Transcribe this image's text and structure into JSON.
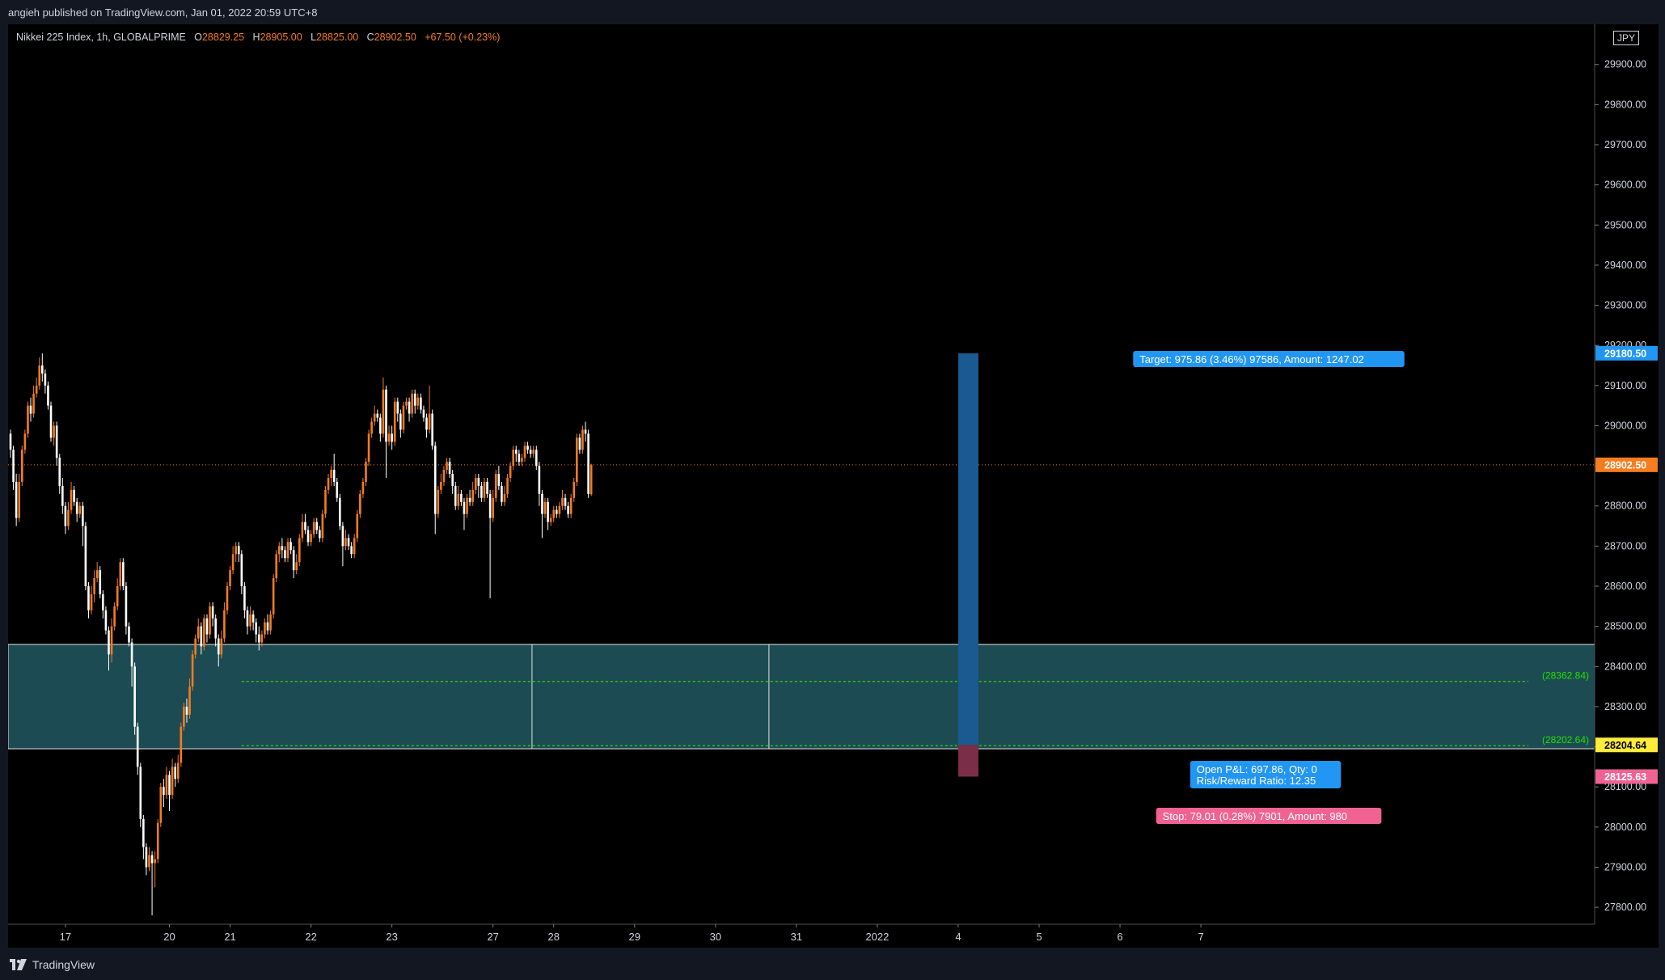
{
  "header": {
    "publisher_line": "angieh published on TradingView.com, Jan 01, 2022 20:59 UTC+8"
  },
  "legend": {
    "symbol": "Nikkei 225 Index, 1h, GLOBALPRIME",
    "open_label": "O",
    "open": "28829.25",
    "high_label": "H",
    "high": "28905.00",
    "low_label": "L",
    "low": "28825.00",
    "close_label": "C",
    "close": "28902.50",
    "change": "+67.50 (+0.23%)"
  },
  "currency_badge": "JPY",
  "footer": {
    "brand": "TradingView"
  },
  "colors": {
    "up": "#f57c1f",
    "down": "#ffffff",
    "zone": "#1d4b53",
    "target": "#2196f3",
    "target_fill": "#1b5a90",
    "stop": "#f06292",
    "last_price": "#f57c1f",
    "entry_price": "#ffeb3b",
    "level_line": "#22e000"
  },
  "chart_data": {
    "type": "candlestick",
    "symbol": "Nikkei 225 Index",
    "interval": "1h",
    "y_axis": {
      "range": [
        27770,
        29980
      ],
      "ticks": [
        27800,
        27900,
        28000,
        28100,
        28200,
        28300,
        28400,
        28500,
        28600,
        28700,
        28800,
        28900,
        29000,
        29100,
        29200,
        29300,
        29400,
        29500,
        29600,
        29700,
        29800,
        29900
      ],
      "tick_labels": [
        "27800.00",
        "27900.00",
        "28000.00",
        "28100.00",
        "28200.00",
        "28300.00",
        "28400.00",
        "28500.00",
        "28600.00",
        "28700.00",
        "28800.00",
        "28900.00",
        "29000.00",
        "29100.00",
        "29200.00",
        "29300.00",
        "29400.00",
        "29500.00",
        "29600.00",
        "29700.00",
        "29800.00",
        "29900.00"
      ]
    },
    "x_axis": {
      "tick_labels": [
        "17",
        "20",
        "21",
        "22",
        "23",
        "27",
        "28",
        "29",
        "30",
        "31",
        "2022",
        "4",
        "5",
        "6",
        "7"
      ],
      "tick_bar_index": [
        19,
        55,
        76,
        104,
        132,
        167,
        188,
        216,
        244,
        272,
        300,
        328,
        356,
        384,
        412
      ]
    },
    "grid": false,
    "price_labels": [
      {
        "value": 29180.5,
        "text": "29180.50",
        "kind": "target"
      },
      {
        "value": 28902.5,
        "text": "28902.50",
        "kind": "last"
      },
      {
        "value": 28204.64,
        "text": "28204.64",
        "kind": "entry"
      },
      {
        "value": 28125.63,
        "text": "28125.63",
        "kind": "stop"
      }
    ],
    "zone": {
      "top": 28455,
      "bottom": 28195,
      "dividers_bar_index": [
        180.5,
        262.5
      ]
    },
    "level_lines": [
      {
        "value": 28362.84,
        "text": "(28362.84)"
      },
      {
        "value": 28202.64,
        "text": "(28202.64)"
      }
    ],
    "position": {
      "bar_start": 328,
      "bar_end": 335,
      "entry": 28204.64,
      "target": 29180.5,
      "stop": 28125.63,
      "target_label": "Target: 975.86 (3.46%) 97586, Amount: 1247.02",
      "stop_label": "Stop: 79.01 (0.28%) 7901, Amount: 980",
      "pnl_label_line1": "Open P&L: 697.86, Qty: 0",
      "pnl_label_line2": "Risk/Reward Ratio: 12.35"
    },
    "candles": [
      [
        28980,
        28940,
        28990,
        28920
      ],
      [
        28940,
        28860,
        28950,
        28840
      ],
      [
        28860,
        28770,
        28880,
        28750
      ],
      [
        28770,
        28860,
        28880,
        28760
      ],
      [
        28860,
        28940,
        28950,
        28850
      ],
      [
        28940,
        28980,
        28990,
        28930
      ],
      [
        28980,
        29050,
        29060,
        28970
      ],
      [
        29050,
        29030,
        29070,
        29010
      ],
      [
        29030,
        29080,
        29100,
        29020
      ],
      [
        29080,
        29100,
        29120,
        29070
      ],
      [
        29100,
        29150,
        29170,
        29090
      ],
      [
        29150,
        29130,
        29180,
        29110
      ],
      [
        29130,
        29100,
        29140,
        29080
      ],
      [
        29100,
        29050,
        29110,
        29040
      ],
      [
        29050,
        28970,
        29060,
        28960
      ],
      [
        28970,
        29000,
        29010,
        28950
      ],
      [
        29000,
        28920,
        29010,
        28900
      ],
      [
        28920,
        28850,
        28930,
        28830
      ],
      [
        28850,
        28800,
        28870,
        28780
      ],
      [
        28800,
        28750,
        28810,
        28730
      ],
      [
        28750,
        28790,
        28810,
        28740
      ],
      [
        28790,
        28840,
        28860,
        28780
      ],
      [
        28840,
        28810,
        28850,
        28800
      ],
      [
        28810,
        28780,
        28820,
        28760
      ],
      [
        28780,
        28800,
        28810,
        28770
      ],
      [
        28800,
        28750,
        28810,
        28700
      ],
      [
        28750,
        28600,
        28760,
        28590
      ],
      [
        28600,
        28540,
        28610,
        28520
      ],
      [
        28540,
        28580,
        28600,
        28530
      ],
      [
        28580,
        28620,
        28640,
        28560
      ],
      [
        28620,
        28640,
        28660,
        28610
      ],
      [
        28640,
        28580,
        28650,
        28570
      ],
      [
        28580,
        28540,
        28590,
        28520
      ],
      [
        28540,
        28490,
        28550,
        28480
      ],
      [
        28490,
        28430,
        28500,
        28390
      ],
      [
        28430,
        28500,
        28520,
        28410
      ],
      [
        28500,
        28550,
        28560,
        28490
      ],
      [
        28550,
        28600,
        28620,
        28540
      ],
      [
        28600,
        28660,
        28670,
        28590
      ],
      [
        28660,
        28600,
        28670,
        28590
      ],
      [
        28600,
        28500,
        28610,
        28480
      ],
      [
        28500,
        28460,
        28510,
        28450
      ],
      [
        28460,
        28400,
        28470,
        28350
      ],
      [
        28400,
        28250,
        28410,
        28230
      ],
      [
        28250,
        28150,
        28260,
        28130
      ],
      [
        28150,
        28020,
        28160,
        28000
      ],
      [
        28020,
        27950,
        28030,
        27920
      ],
      [
        27950,
        27900,
        27960,
        27880
      ],
      [
        27900,
        27930,
        27950,
        27890
      ],
      [
        27930,
        27910,
        27940,
        27780
      ],
      [
        27910,
        27920,
        27940,
        27850
      ],
      [
        27920,
        28010,
        28020,
        27910
      ],
      [
        28010,
        28100,
        28110,
        28000
      ],
      [
        28100,
        28080,
        28120,
        28050
      ],
      [
        28080,
        28130,
        28150,
        28070
      ],
      [
        28130,
        28080,
        28140,
        28040
      ],
      [
        28080,
        28150,
        28170,
        28070
      ],
      [
        28150,
        28120,
        28160,
        28100
      ],
      [
        28120,
        28160,
        28180,
        28110
      ],
      [
        28160,
        28250,
        28260,
        28150
      ],
      [
        28250,
        28300,
        28310,
        28240
      ],
      [
        28300,
        28280,
        28320,
        28260
      ],
      [
        28280,
        28350,
        28370,
        28270
      ],
      [
        28350,
        28430,
        28440,
        28340
      ],
      [
        28430,
        28470,
        28480,
        28420
      ],
      [
        28470,
        28500,
        28520,
        28460
      ],
      [
        28500,
        28450,
        28510,
        28430
      ],
      [
        28450,
        28520,
        28530,
        28440
      ],
      [
        28520,
        28480,
        28530,
        28460
      ],
      [
        28480,
        28550,
        28560,
        28470
      ],
      [
        28550,
        28520,
        28560,
        28500
      ],
      [
        28520,
        28470,
        28530,
        28450
      ],
      [
        28470,
        28430,
        28480,
        28400
      ],
      [
        28430,
        28470,
        28490,
        28420
      ],
      [
        28470,
        28540,
        28560,
        28460
      ],
      [
        28540,
        28600,
        28610,
        28530
      ],
      [
        28600,
        28640,
        28650,
        28590
      ],
      [
        28640,
        28680,
        28700,
        28630
      ],
      [
        28680,
        28700,
        28710,
        28660
      ],
      [
        28700,
        28680,
        28710,
        28660
      ],
      [
        28680,
        28600,
        28690,
        28580
      ],
      [
        28600,
        28540,
        28610,
        28520
      ],
      [
        28540,
        28500,
        28550,
        28480
      ],
      [
        28500,
        28530,
        28550,
        28490
      ],
      [
        28530,
        28510,
        28540,
        28490
      ],
      [
        28510,
        28480,
        28520,
        28460
      ],
      [
        28480,
        28460,
        28500,
        28440
      ],
      [
        28460,
        28480,
        28490,
        28450
      ],
      [
        28480,
        28510,
        28520,
        28470
      ],
      [
        28510,
        28490,
        28530,
        28480
      ],
      [
        28490,
        28530,
        28540,
        28480
      ],
      [
        28530,
        28620,
        28630,
        28520
      ],
      [
        28620,
        28680,
        28690,
        28610
      ],
      [
        28680,
        28700,
        28710,
        28660
      ],
      [
        28700,
        28690,
        28720,
        28670
      ],
      [
        28690,
        28670,
        28700,
        28660
      ],
      [
        28670,
        28710,
        28720,
        28660
      ],
      [
        28710,
        28690,
        28720,
        28680
      ],
      [
        28690,
        28640,
        28700,
        28620
      ],
      [
        28640,
        28660,
        28680,
        28630
      ],
      [
        28660,
        28720,
        28730,
        28650
      ],
      [
        28720,
        28760,
        28780,
        28710
      ],
      [
        28760,
        28740,
        28780,
        28730
      ],
      [
        28740,
        28710,
        28750,
        28700
      ],
      [
        28710,
        28730,
        28740,
        28700
      ],
      [
        28730,
        28760,
        28770,
        28720
      ],
      [
        28760,
        28740,
        28770,
        28730
      ],
      [
        28740,
        28720,
        28750,
        28710
      ],
      [
        28720,
        28780,
        28790,
        28710
      ],
      [
        28780,
        28840,
        28850,
        28770
      ],
      [
        28840,
        28870,
        28880,
        28830
      ],
      [
        28870,
        28890,
        28900,
        28850
      ],
      [
        28890,
        28860,
        28930,
        28850
      ],
      [
        28860,
        28820,
        28870,
        28810
      ],
      [
        28820,
        28750,
        28830,
        28740
      ],
      [
        28750,
        28700,
        28760,
        28650
      ],
      [
        28700,
        28720,
        28740,
        28690
      ],
      [
        28720,
        28700,
        28730,
        28690
      ],
      [
        28700,
        28680,
        28710,
        28670
      ],
      [
        28680,
        28720,
        28730,
        28670
      ],
      [
        28720,
        28780,
        28790,
        28710
      ],
      [
        28780,
        28830,
        28840,
        28770
      ],
      [
        28830,
        28860,
        28870,
        28820
      ],
      [
        28860,
        28910,
        28920,
        28850
      ],
      [
        28910,
        28980,
        28990,
        28900
      ],
      [
        28980,
        29010,
        29020,
        28970
      ],
      [
        29010,
        29030,
        29050,
        29000
      ],
      [
        29030,
        29020,
        29040,
        29010
      ],
      [
        29020,
        28980,
        29030,
        28960
      ],
      [
        28980,
        29090,
        29120,
        28970
      ],
      [
        29090,
        28960,
        29100,
        28870
      ],
      [
        28960,
        28980,
        29000,
        28950
      ],
      [
        28980,
        28960,
        29000,
        28940
      ],
      [
        28960,
        29060,
        29070,
        28950
      ],
      [
        29060,
        29030,
        29070,
        29010
      ],
      [
        29030,
        28990,
        29040,
        28970
      ],
      [
        28990,
        29050,
        29060,
        28980
      ],
      [
        29050,
        29060,
        29070,
        29040
      ],
      [
        29060,
        29030,
        29070,
        29010
      ],
      [
        29030,
        29080,
        29090,
        29020
      ],
      [
        29080,
        29050,
        29090,
        29030
      ],
      [
        29050,
        29070,
        29080,
        29040
      ],
      [
        29070,
        29040,
        29080,
        29030
      ],
      [
        29040,
        29020,
        29050,
        29010
      ],
      [
        29020,
        28990,
        29030,
        28970
      ],
      [
        28990,
        29030,
        29100,
        28980
      ],
      [
        29030,
        28950,
        29040,
        28940
      ],
      [
        28950,
        28780,
        28960,
        28730
      ],
      [
        28780,
        28840,
        28850,
        28770
      ],
      [
        28840,
        28860,
        28880,
        28830
      ],
      [
        28860,
        28890,
        28900,
        28850
      ],
      [
        28890,
        28910,
        28920,
        28880
      ],
      [
        28910,
        28880,
        28920,
        28870
      ],
      [
        28880,
        28850,
        28890,
        28830
      ],
      [
        28850,
        28800,
        28860,
        28790
      ],
      [
        28800,
        28830,
        28850,
        28790
      ],
      [
        28830,
        28810,
        28840,
        28800
      ],
      [
        28810,
        28780,
        28820,
        28740
      ],
      [
        28780,
        28820,
        28830,
        28770
      ],
      [
        28820,
        28810,
        28840,
        28800
      ],
      [
        28810,
        28840,
        28860,
        28800
      ],
      [
        28840,
        28870,
        28880,
        28830
      ],
      [
        28870,
        28850,
        28880,
        28820
      ],
      [
        28850,
        28820,
        28860,
        28810
      ],
      [
        28820,
        28860,
        28870,
        28810
      ],
      [
        28860,
        28830,
        28870,
        28820
      ],
      [
        28830,
        28770,
        28840,
        28570
      ],
      [
        28770,
        28820,
        28840,
        28760
      ],
      [
        28820,
        28880,
        28890,
        28810
      ],
      [
        28880,
        28850,
        28900,
        28840
      ],
      [
        28850,
        28810,
        28860,
        28800
      ],
      [
        28810,
        28830,
        28850,
        28800
      ],
      [
        28830,
        28870,
        28880,
        28820
      ],
      [
        28870,
        28900,
        28910,
        28860
      ],
      [
        28900,
        28940,
        28950,
        28890
      ],
      [
        28940,
        28930,
        28950,
        28910
      ],
      [
        28930,
        28910,
        28940,
        28900
      ],
      [
        28910,
        28920,
        28930,
        28900
      ],
      [
        28920,
        28950,
        28960,
        28910
      ],
      [
        28950,
        28940,
        28960,
        28930
      ],
      [
        28940,
        28930,
        28950,
        28920
      ],
      [
        28930,
        28940,
        28950,
        28920
      ],
      [
        28940,
        28900,
        28950,
        28890
      ],
      [
        28900,
        28830,
        28910,
        28800
      ],
      [
        28830,
        28780,
        28840,
        28720
      ],
      [
        28780,
        28810,
        28820,
        28770
      ],
      [
        28810,
        28760,
        28820,
        28740
      ],
      [
        28760,
        28770,
        28780,
        28750
      ],
      [
        28770,
        28790,
        28800,
        28760
      ],
      [
        28790,
        28780,
        28800,
        28770
      ],
      [
        28780,
        28800,
        28810,
        28770
      ],
      [
        28800,
        28820,
        28840,
        28790
      ],
      [
        28820,
        28800,
        28830,
        28790
      ],
      [
        28800,
        28780,
        28810,
        28770
      ],
      [
        28780,
        28820,
        28830,
        28770
      ],
      [
        28820,
        28860,
        28870,
        28810
      ],
      [
        28860,
        28970,
        28980,
        28850
      ],
      [
        28970,
        28940,
        28980,
        28930
      ],
      [
        28940,
        28990,
        29000,
        28930
      ],
      [
        28990,
        28980,
        29010,
        28960
      ],
      [
        28980,
        28830,
        28990,
        28820
      ],
      [
        28829.25,
        28902.5,
        28905,
        28825
      ]
    ]
  }
}
